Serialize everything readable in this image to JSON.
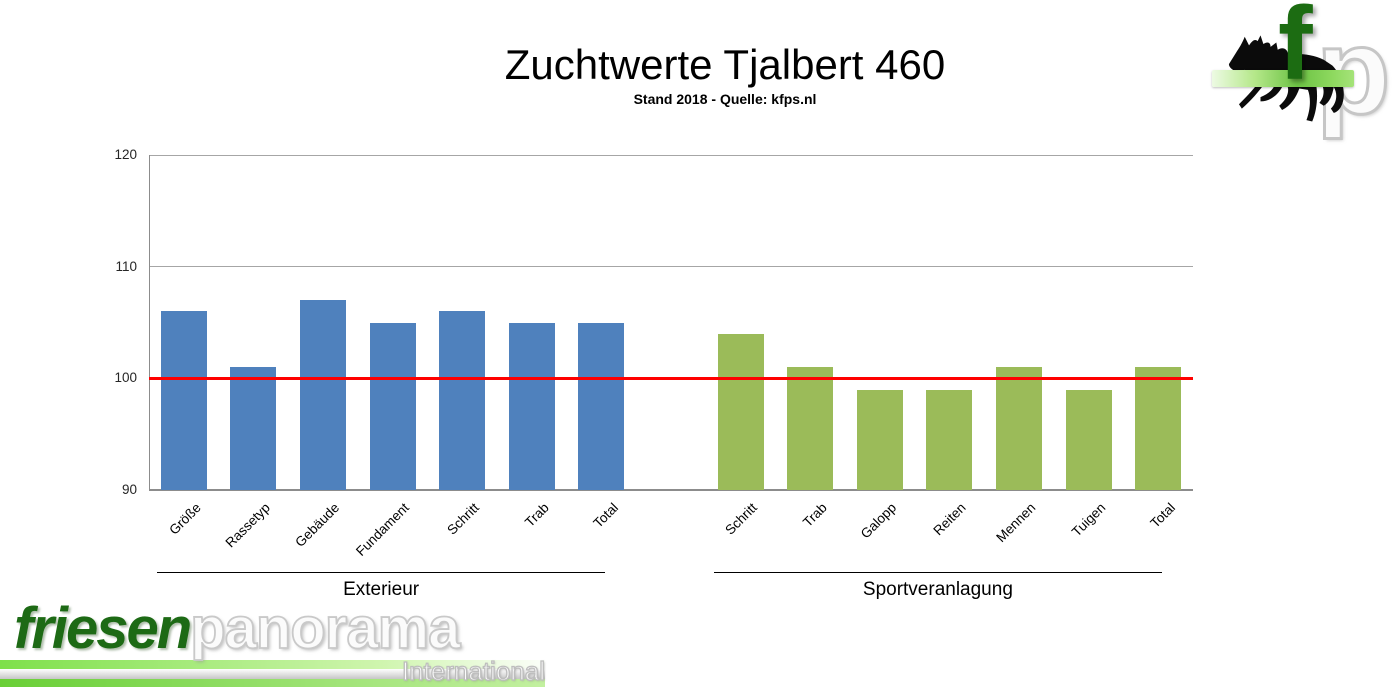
{
  "header": {
    "title": "Zuchtwerte Tjalbert 460",
    "subtitle": "Stand 2018 - Quelle: kfps.nl"
  },
  "chart_data": {
    "type": "bar",
    "title": "Zuchtwerte Tjalbert 460",
    "subtitle": "Stand 2018 - Quelle: kfps.nl",
    "ylim": [
      90,
      120
    ],
    "yticks": [
      90,
      100,
      110,
      120
    ],
    "grid": true,
    "legend": "none",
    "reference_line": {
      "value": 100,
      "color": "#ff0000"
    },
    "groups": [
      {
        "name": "Exterieur",
        "color": "#4f81bd",
        "categories": [
          "Größe",
          "Rassetyp",
          "Gebäude",
          "Fundament",
          "Schritt",
          "Trab",
          "Total"
        ],
        "values": [
          106,
          101,
          107,
          105,
          106,
          105,
          105
        ]
      },
      {
        "name": "Sportveranlagung",
        "color": "#9bbb59",
        "categories": [
          "Schritt",
          "Trab",
          "Galopp",
          "Reiten",
          "Mennen",
          "Tuigen",
          "Total"
        ],
        "values": [
          104,
          101,
          99,
          99,
          101,
          99,
          101
        ]
      }
    ]
  },
  "colors": {
    "bar_blue": "#4f81bd",
    "bar_green": "#9bbb59",
    "reference_red": "#ff0000",
    "gridline": "#a6a6a6",
    "axis": "#8c8c8c",
    "logo_green": "#1c6c12"
  },
  "branding": {
    "corner": {
      "f": "f",
      "p": "p"
    },
    "footer": {
      "part1": "friesen",
      "part2": "panorama",
      "sub": "International"
    }
  }
}
